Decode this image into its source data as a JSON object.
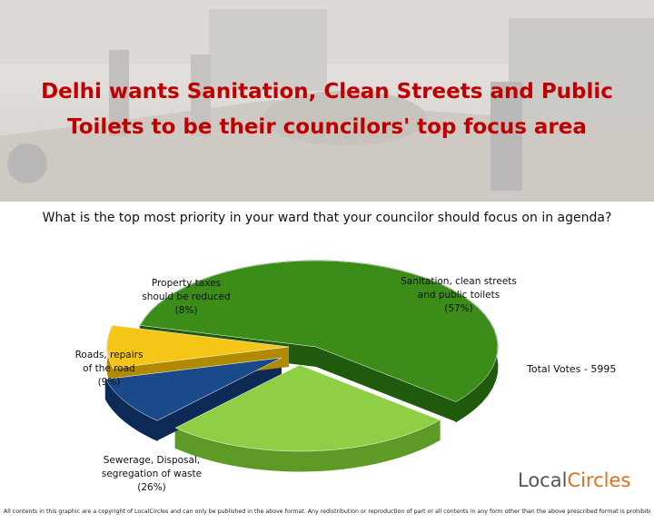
{
  "headline": {
    "line1": "Delhi wants Sanitation, Clean Streets and Public",
    "line2": "Toilets to be their councilors' top focus area"
  },
  "question": "What is the top most priority in your ward that your councilor should focus on in agenda?",
  "total_votes": "Total Votes - 5995",
  "branding": {
    "logo_part1": "Local",
    "logo_part2": "Circles"
  },
  "copyright": "All contents in this graphic are a copyright of LocalCircles and can only be published in the above format. Any redistribution or reproduction of part or all contents in any form other than the above prescribed format is prohibited.",
  "chart_data": {
    "type": "pie",
    "title": "",
    "slices": [
      {
        "name": "Sanitation, clean streets and public toilets",
        "value": 57,
        "label_lines": [
          "Sanitation, clean streets",
          "and public toilets",
          "(57%)"
        ],
        "color": "#3b8c18",
        "side": "#1f5a0d"
      },
      {
        "name": "Sewerage, Disposal, segregation of waste",
        "value": 26,
        "label_lines": [
          "Sewerage, Disposal,",
          "segregation of waste",
          "(26%)"
        ],
        "color": "#8ecf45",
        "side": "#5d9a26"
      },
      {
        "name": "Roads, repairs of the road",
        "value": 9,
        "label_lines": [
          "Roads, repairs",
          "of the road",
          "(9%)"
        ],
        "color": "#1b4a8a",
        "side": "#0c2a55"
      },
      {
        "name": "Property taxes should be reduced",
        "value": 8,
        "label_lines": [
          "Property taxes",
          "should be reduced",
          "(8%)"
        ],
        "color": "#f5c518",
        "side": "#b08a00"
      }
    ]
  }
}
